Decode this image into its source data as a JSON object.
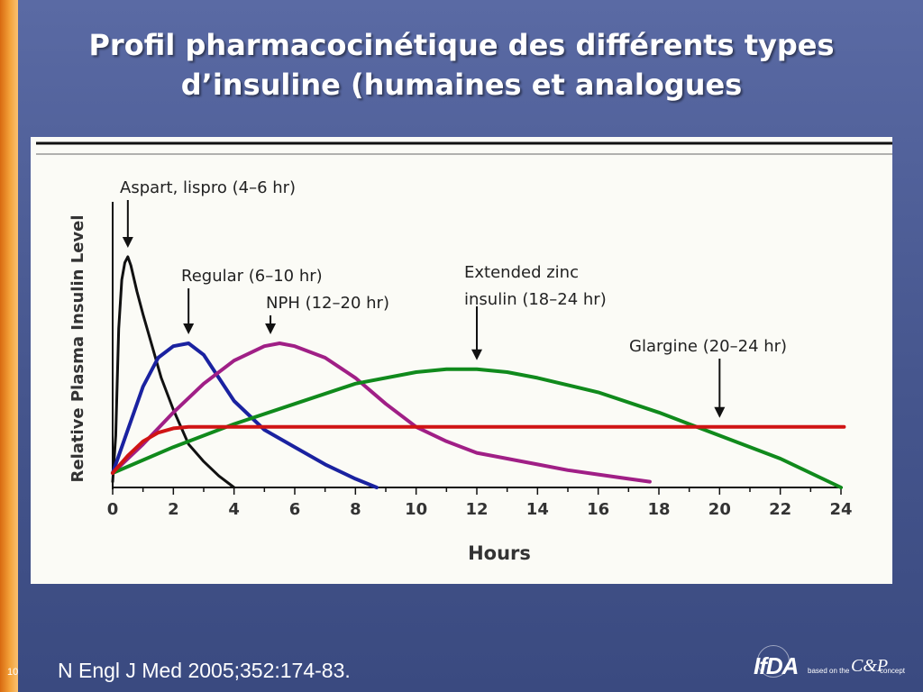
{
  "slide": {
    "title_line1": "Profil pharmacocinétique des différents types",
    "title_line2": "d’insuline (humaines et analogues",
    "citation": "N Engl J Med 2005;352:174-83.",
    "page_number": "10",
    "brand": {
      "logo": "IfDA",
      "based_on": "based on the",
      "mark": "C&P",
      "concept": "concept"
    }
  },
  "colors": {
    "background": "#4a5a92",
    "accent_orange": "#f29a2e",
    "panel": "#fbfbf6"
  },
  "chart_data": {
    "type": "line",
    "title": "",
    "xlabel": "Hours",
    "ylabel": "Relative Plasma Insulin Level",
    "xlim": [
      0,
      24
    ],
    "ylim": [
      0,
      100
    ],
    "xticks": [
      0,
      2,
      4,
      6,
      8,
      10,
      12,
      14,
      16,
      18,
      20,
      22,
      24
    ],
    "grid": false,
    "legend": "none",
    "series": [
      {
        "name": "Aspart, lispro (4–6 hr)",
        "color": "#111111",
        "x": [
          0,
          0.1,
          0.2,
          0.3,
          0.4,
          0.5,
          0.6,
          0.8,
          1.0,
          1.3,
          1.6,
          2.0,
          2.5,
          3.0,
          3.5,
          4.0
        ],
        "y": [
          2,
          18,
          55,
          72,
          78,
          80,
          77,
          68,
          60,
          49,
          38,
          27,
          15,
          9,
          4,
          0
        ]
      },
      {
        "name": "Regular (6–10 hr)",
        "color": "#1a22a0",
        "x": [
          0,
          0.5,
          1.0,
          1.5,
          2.0,
          2.5,
          3.0,
          3.5,
          4.0,
          5.0,
          6.0,
          7.0,
          8.0,
          8.7
        ],
        "y": [
          5,
          20,
          35,
          45,
          49,
          50,
          46,
          38,
          30,
          20,
          14,
          8,
          3,
          0
        ]
      },
      {
        "name": "NPH (12–20 hr)",
        "color": "#a01f86",
        "x": [
          0,
          1,
          2,
          3,
          4,
          5,
          5.5,
          6,
          7,
          8,
          9,
          10,
          11,
          12,
          13,
          14,
          15,
          16,
          17,
          17.7
        ],
        "y": [
          5,
          15,
          26,
          36,
          44,
          49,
          50,
          49,
          45,
          38,
          29,
          21,
          16,
          12,
          10,
          8,
          6,
          4.5,
          3,
          2
        ]
      },
      {
        "name": "Extended zinc insulin (18–24 hr)",
        "color": "#108a1c",
        "x": [
          0,
          2,
          4,
          6,
          8,
          10,
          11,
          12,
          13,
          14,
          16,
          18,
          20,
          22,
          24
        ],
        "y": [
          5,
          14,
          22,
          29,
          36,
          40,
          41,
          41,
          40,
          38,
          33,
          26,
          18,
          10,
          0
        ]
      },
      {
        "name": "Glargine (20–24 hr)",
        "color": "#d01414",
        "x": [
          0,
          0.5,
          1,
          1.5,
          2,
          2.5,
          24.1
        ],
        "y": [
          5,
          11,
          16,
          19,
          20.5,
          21,
          21
        ]
      }
    ],
    "annotations": [
      {
        "id": "aspart",
        "line1": "Aspart, lispro (4–6 hr)",
        "line2": "",
        "arrow_x": 0.5,
        "arrow_y": 80
      },
      {
        "id": "regular",
        "line1": "Regular (6–10 hr)",
        "line2": "",
        "arrow_x": 2.5,
        "arrow_y": 50
      },
      {
        "id": "nph",
        "line1": "NPH (12–20 hr)",
        "line2": "",
        "arrow_x": 5.2,
        "arrow_y": 50
      },
      {
        "id": "zinc",
        "line1": "Extended zinc",
        "line2": "insulin (18–24 hr)",
        "arrow_x": 12,
        "arrow_y": 41
      },
      {
        "id": "glargine",
        "line1": "Glargine (20–24 hr)",
        "line2": "",
        "arrow_x": 20,
        "arrow_y": 21
      }
    ]
  }
}
